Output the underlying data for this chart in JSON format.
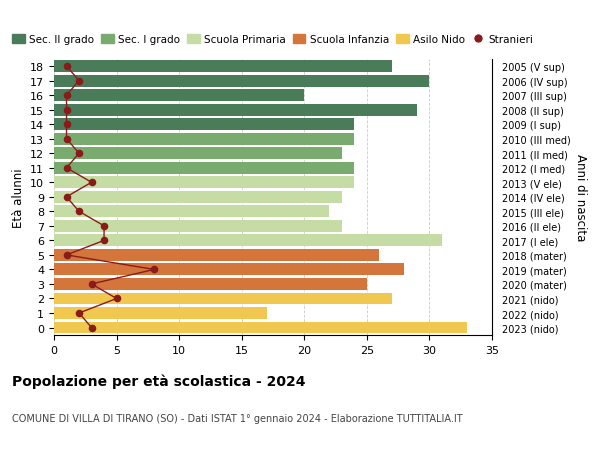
{
  "ages": [
    18,
    17,
    16,
    15,
    14,
    13,
    12,
    11,
    10,
    9,
    8,
    7,
    6,
    5,
    4,
    3,
    2,
    1,
    0
  ],
  "right_labels": [
    "2005 (V sup)",
    "2006 (IV sup)",
    "2007 (III sup)",
    "2008 (II sup)",
    "2009 (I sup)",
    "2010 (III med)",
    "2011 (II med)",
    "2012 (I med)",
    "2013 (V ele)",
    "2014 (IV ele)",
    "2015 (III ele)",
    "2016 (II ele)",
    "2017 (I ele)",
    "2018 (mater)",
    "2019 (mater)",
    "2020 (mater)",
    "2021 (nido)",
    "2022 (nido)",
    "2023 (nido)"
  ],
  "bar_values": [
    27,
    30,
    20,
    29,
    24,
    24,
    23,
    24,
    24,
    23,
    22,
    23,
    31,
    26,
    28,
    25,
    27,
    17,
    33
  ],
  "bar_colors": [
    "#4a7c59",
    "#4a7c59",
    "#4a7c59",
    "#4a7c59",
    "#4a7c59",
    "#7aab6e",
    "#7aab6e",
    "#7aab6e",
    "#c5dda4",
    "#c5dda4",
    "#c5dda4",
    "#c5dda4",
    "#c5dda4",
    "#d4763b",
    "#d4763b",
    "#d4763b",
    "#f0c850",
    "#f0c850",
    "#f0c850"
  ],
  "stranieri_values": [
    1,
    2,
    1,
    1,
    1,
    1,
    2,
    1,
    3,
    1,
    2,
    4,
    4,
    1,
    8,
    3,
    5,
    2,
    3
  ],
  "stranieri_color": "#8b1a1a",
  "legend_entries": [
    {
      "label": "Sec. II grado",
      "color": "#4a7c59",
      "type": "patch"
    },
    {
      "label": "Sec. I grado",
      "color": "#7aab6e",
      "type": "patch"
    },
    {
      "label": "Scuola Primaria",
      "color": "#c5dda4",
      "type": "patch"
    },
    {
      "label": "Scuola Infanzia",
      "color": "#d4763b",
      "type": "patch"
    },
    {
      "label": "Asilo Nido",
      "color": "#f0c850",
      "type": "patch"
    },
    {
      "label": "Stranieri",
      "color": "#8b1a1a",
      "type": "dot"
    }
  ],
  "ylabel": "Età alunni",
  "ylabel_right": "Anni di nascita",
  "title": "Popolazione per età scolastica - 2024",
  "subtitle": "COMUNE DI VILLA DI TIRANO (SO) - Dati ISTAT 1° gennaio 2024 - Elaborazione TUTTITALIA.IT",
  "xlim": [
    0,
    35
  ],
  "xticks": [
    0,
    5,
    10,
    15,
    20,
    25,
    30,
    35
  ],
  "bg_color": "#ffffff",
  "grid_color": "#cccccc",
  "bar_height": 0.82
}
